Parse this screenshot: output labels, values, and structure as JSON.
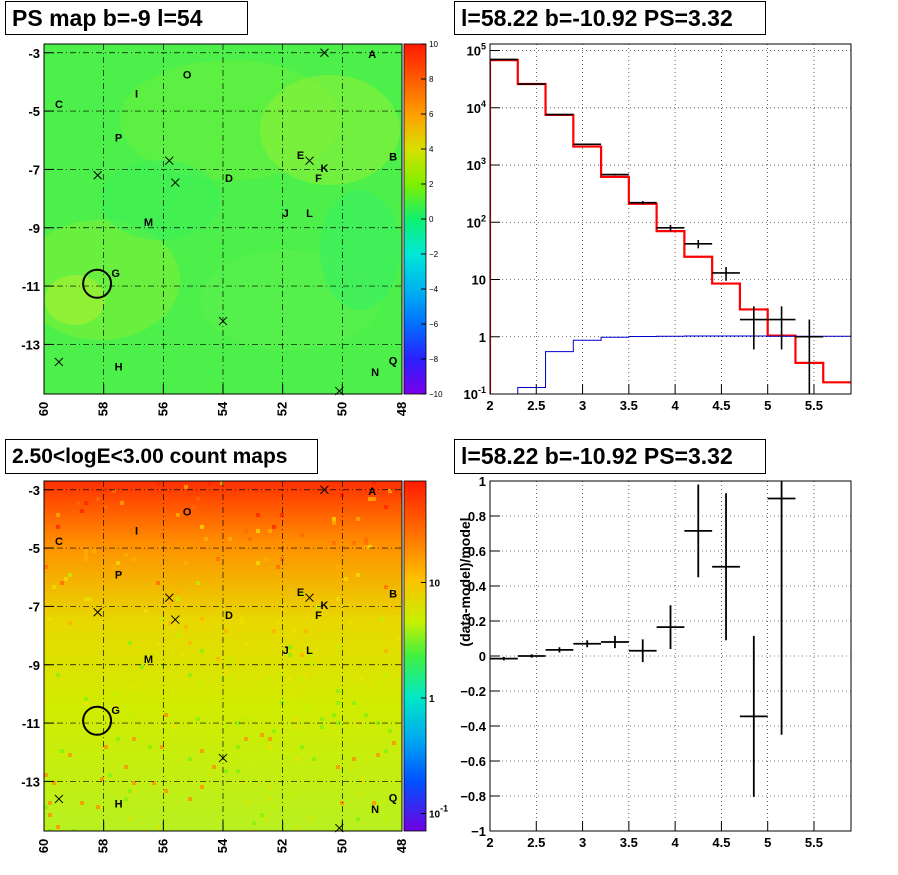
{
  "panels": {
    "ps_map": {
      "title": "PS map b=-9 l=54"
    },
    "spectrum": {
      "title": "l=58.22 b=-10.92 PS=3.32"
    },
    "count_map": {
      "title": "2.50<logE<3.00 count maps"
    },
    "residual": {
      "title": "l=58.22 b=-10.92 PS=3.32"
    }
  },
  "chart_data": [
    {
      "type": "heatmap",
      "title": "PS map b=-9 l=54",
      "x_ticks": [
        "60",
        "58",
        "56",
        "54",
        "52",
        "50",
        "48"
      ],
      "y_ticks": [
        "-3",
        "-5",
        "-7",
        "-9",
        "-11",
        "-13"
      ],
      "xlim": [
        60,
        48
      ],
      "ylim": [
        -14.7,
        -2.7
      ],
      "colorbar": {
        "min": -10,
        "max": 10,
        "ticks": [
          "10",
          "8",
          "6",
          "4",
          "2",
          "0",
          "−2",
          "−4",
          "−6",
          "−8",
          "−10"
        ]
      },
      "dominant_value": 2,
      "grid": true,
      "source_circle": {
        "l": 58.22,
        "b": -10.92
      },
      "labels": [
        {
          "text": "A",
          "l": 49.0,
          "b": -3.05
        },
        {
          "text": "B",
          "l": 48.3,
          "b": -6.55
        },
        {
          "text": "C",
          "l": 59.5,
          "b": -4.75
        },
        {
          "text": "D",
          "l": 53.8,
          "b": -7.3
        },
        {
          "text": "E",
          "l": 51.4,
          "b": -6.5
        },
        {
          "text": "F",
          "l": 50.8,
          "b": -7.3
        },
        {
          "text": "G",
          "l": 57.6,
          "b": -10.55
        },
        {
          "text": "H",
          "l": 57.5,
          "b": -13.75
        },
        {
          "text": "I",
          "l": 56.9,
          "b": -4.4
        },
        {
          "text": "J",
          "l": 51.9,
          "b": -8.5
        },
        {
          "text": "K",
          "l": 50.6,
          "b": -6.95
        },
        {
          "text": "L",
          "l": 51.1,
          "b": -8.5
        },
        {
          "text": "M",
          "l": 56.5,
          "b": -8.8
        },
        {
          "text": "N",
          "l": 48.9,
          "b": -13.95
        },
        {
          "text": "O",
          "l": 55.2,
          "b": -3.75
        },
        {
          "text": "P",
          "l": 57.5,
          "b": -5.9
        },
        {
          "text": "Q",
          "l": 48.3,
          "b": -13.55
        }
      ],
      "markers": [
        {
          "l": 50.6,
          "b": -3.0
        },
        {
          "l": 58.2,
          "b": -7.2
        },
        {
          "l": 55.8,
          "b": -6.7
        },
        {
          "l": 55.6,
          "b": -7.45
        },
        {
          "l": 51.1,
          "b": -6.7
        },
        {
          "l": 54.0,
          "b": -12.2
        },
        {
          "l": 59.5,
          "b": -13.6
        },
        {
          "l": 50.1,
          "b": -14.6
        }
      ]
    },
    {
      "type": "line",
      "title": "l=58.22 b=-10.92 PS=3.32",
      "x_ticks": [
        "2",
        "2.5",
        "3",
        "3.5",
        "4",
        "4.5",
        "5",
        "5.5"
      ],
      "y_ticks": [
        "10^5",
        "10^4",
        "10^3",
        "10^2",
        "10",
        "1",
        "10^-1"
      ],
      "xlim": [
        2,
        5.9
      ],
      "ylim": [
        0.1,
        130000
      ],
      "y_scale": "log",
      "grid": true,
      "bin_edges": [
        2.0,
        2.3,
        2.6,
        2.9,
        3.2,
        3.5,
        3.8,
        4.1,
        4.4,
        4.7,
        5.0,
        5.3,
        5.6,
        5.9
      ],
      "series": [
        {
          "kind": "model_total",
          "color": "#ff0000",
          "values": [
            68000,
            26000,
            7500,
            2100,
            620,
            210,
            70,
            25,
            8.5,
            3.0,
            1.05,
            0.35,
            0.16
          ]
        },
        {
          "kind": "model_source",
          "color": "#0000cc",
          "values": [
            0.1,
            0.13,
            0.55,
            0.87,
            0.98,
            1.01,
            1.02,
            1.03,
            1.03,
            1.03,
            1.02,
            1.02,
            1.02
          ]
        },
        {
          "kind": "data",
          "color": "#000000",
          "points": [
            {
              "x": 2.15,
              "y": 70000,
              "lo": 69500,
              "hi": 70500
            },
            {
              "x": 2.45,
              "y": 26000,
              "lo": 25800,
              "hi": 26200
            },
            {
              "x": 2.75,
              "y": 7600,
              "lo": 7500,
              "hi": 7700
            },
            {
              "x": 3.05,
              "y": 2300,
              "lo": 2250,
              "hi": 2350
            },
            {
              "x": 3.35,
              "y": 680,
              "lo": 655,
              "hi": 705
            },
            {
              "x": 3.65,
              "y": 220,
              "lo": 205,
              "hi": 235
            },
            {
              "x": 3.95,
              "y": 80,
              "lo": 70,
              "hi": 90
            },
            {
              "x": 4.25,
              "y": 42,
              "lo": 35,
              "hi": 49
            },
            {
              "x": 4.55,
              "y": 13,
              "lo": 9.5,
              "hi": 16.5
            },
            {
              "x": 4.85,
              "y": 2.0,
              "lo": 0.6,
              "hi": 3.4
            },
            {
              "x": 5.15,
              "y": 2.0,
              "lo": 0.6,
              "hi": 3.4
            },
            {
              "x": 5.45,
              "y": 1.0,
              "lo": 0.1,
              "hi": 2.0
            }
          ]
        }
      ]
    },
    {
      "type": "heatmap",
      "title": "2.50<logE<3.00 count maps",
      "x_ticks": [
        "60",
        "58",
        "56",
        "54",
        "52",
        "50",
        "48"
      ],
      "y_ticks": [
        "-3",
        "-5",
        "-7",
        "-9",
        "-11",
        "-13"
      ],
      "xlim": [
        60,
        48
      ],
      "ylim": [
        -14.7,
        -2.7
      ],
      "colorbar": {
        "scale": "log",
        "ticks": [
          "10",
          "1",
          "10^-1"
        ]
      },
      "grid": true,
      "source_circle": {
        "l": 58.22,
        "b": -10.92
      },
      "labels_same_as_ps_map": true
    },
    {
      "type": "scatter",
      "title": "l=58.22 b=-10.92 PS=3.32",
      "ylabel": "(data-model)/model",
      "x_ticks": [
        "2",
        "2.5",
        "3",
        "3.5",
        "4",
        "4.5",
        "5",
        "5.5"
      ],
      "y_ticks": [
        "1",
        "0.8",
        "0.6",
        "0.4",
        "0.2",
        "0",
        "−0.2",
        "−0.4",
        "−0.6",
        "−0.8",
        "−1"
      ],
      "xlim": [
        2,
        5.9
      ],
      "ylim": [
        -1,
        1
      ],
      "grid": true,
      "points": [
        {
          "x": 2.15,
          "y": -0.015,
          "yerr": 0.01,
          "xerr": 0.15
        },
        {
          "x": 2.45,
          "y": 0.0,
          "yerr": 0.01,
          "xerr": 0.15
        },
        {
          "x": 2.75,
          "y": 0.035,
          "yerr": 0.015,
          "xerr": 0.15
        },
        {
          "x": 3.05,
          "y": 0.07,
          "yerr": 0.02,
          "xerr": 0.15
        },
        {
          "x": 3.35,
          "y": 0.08,
          "yerr": 0.035,
          "xerr": 0.15
        },
        {
          "x": 3.65,
          "y": 0.03,
          "yerr": 0.065,
          "xerr": 0.15
        },
        {
          "x": 3.95,
          "y": 0.165,
          "yerr": 0.125,
          "xerr": 0.15
        },
        {
          "x": 4.25,
          "y": 0.715,
          "yerr": 0.265,
          "xerr": 0.15
        },
        {
          "x": 4.55,
          "y": 0.51,
          "yerr": 0.42,
          "xerr": 0.15
        },
        {
          "x": 4.85,
          "y": -0.345,
          "yerr": 0.46,
          "xerr": 0.15
        },
        {
          "x": 5.15,
          "y": 0.9,
          "yerr": 1.35,
          "xerr": 0.15
        }
      ]
    }
  ]
}
